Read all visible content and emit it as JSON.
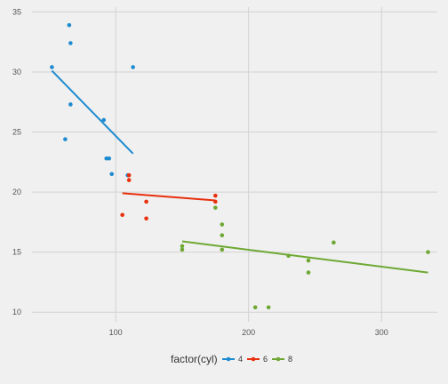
{
  "chart_data": {
    "type": "scatter",
    "xlim": [
      37,
      342
    ],
    "ylim": [
      9.2,
      35.4
    ],
    "x_ticks": [
      100,
      200,
      300
    ],
    "y_ticks": [
      10,
      15,
      20,
      25,
      30,
      35
    ],
    "x_tick_labels": [
      "100",
      "200",
      "300"
    ],
    "y_tick_labels": [
      "10",
      "15",
      "20",
      "25",
      "30",
      "35"
    ],
    "xlabel": "",
    "ylabel": "",
    "grid": true,
    "legend_title": "factor(cyl)",
    "legend_position": "bottom",
    "series": [
      {
        "name": "4",
        "color": "#1d8bcf",
        "points": [
          [
            52,
            30.4
          ],
          [
            65,
            33.9
          ],
          [
            66,
            32.4
          ],
          [
            66,
            27.3
          ],
          [
            62,
            24.4
          ],
          [
            91,
            26.0
          ],
          [
            93,
            22.8
          ],
          [
            95,
            22.8
          ],
          [
            97,
            21.5
          ],
          [
            109,
            21.4
          ],
          [
            113,
            30.4
          ]
        ],
        "fit": [
          [
            52,
            30.1
          ],
          [
            113,
            23.2
          ]
        ]
      },
      {
        "name": "6",
        "color": "#e8300e",
        "points": [
          [
            105,
            18.1
          ],
          [
            110,
            21.0
          ],
          [
            110,
            21.4
          ],
          [
            123,
            19.2
          ],
          [
            123,
            17.8
          ],
          [
            175,
            19.7
          ],
          [
            175,
            19.2
          ]
        ],
        "fit": [
          [
            105,
            19.9
          ],
          [
            175,
            19.3
          ]
        ]
      },
      {
        "name": "8",
        "color": "#6ea833",
        "points": [
          [
            150,
            15.5
          ],
          [
            150,
            15.2
          ],
          [
            175,
            18.7
          ],
          [
            180,
            17.3
          ],
          [
            180,
            16.4
          ],
          [
            180,
            15.2
          ],
          [
            205,
            10.4
          ],
          [
            215,
            10.4
          ],
          [
            230,
            14.7
          ],
          [
            245,
            14.3
          ],
          [
            245,
            13.3
          ],
          [
            264,
            15.8
          ],
          [
            335,
            15.0
          ]
        ],
        "fit": [
          [
            150,
            15.9
          ],
          [
            335,
            13.3
          ]
        ]
      }
    ]
  }
}
